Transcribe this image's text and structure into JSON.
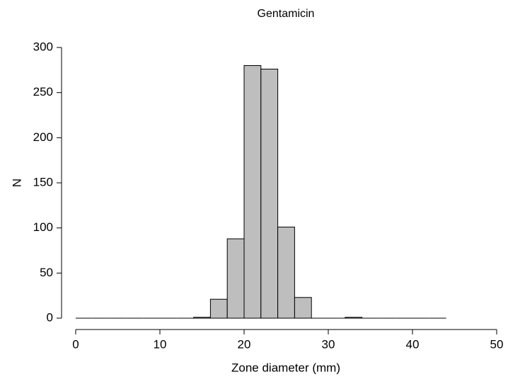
{
  "chart_data": {
    "type": "histogram",
    "title": "Gentamicin",
    "x_label": "Zone diameter (mm)",
    "y_label": "N",
    "bins": [
      0,
      2,
      4,
      6,
      8,
      10,
      12,
      14,
      16,
      18,
      20,
      22,
      24,
      26,
      28,
      30,
      32,
      34,
      36,
      38,
      40,
      42,
      44
    ],
    "values": [
      0,
      0,
      0,
      0,
      0,
      0,
      0,
      1,
      21,
      88,
      280,
      276,
      101,
      23,
      0,
      0,
      1,
      0,
      0,
      0,
      0,
      0
    ],
    "color": "#bebebe",
    "xlim": [
      0,
      50
    ],
    "xticks": [
      0,
      10,
      20,
      30,
      40,
      50
    ],
    "ylim": [
      0,
      300
    ],
    "yticks": [
      0,
      50,
      100,
      150,
      200,
      250,
      300
    ]
  }
}
